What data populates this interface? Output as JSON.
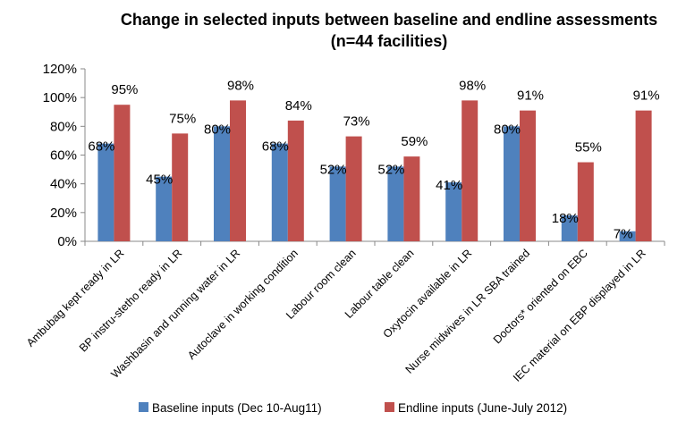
{
  "chart_data": {
    "type": "bar",
    "title": "Change in selected inputs between baseline and endline assessments",
    "subtitle": "(n=44 facilities)",
    "xlabel": "",
    "ylabel": "",
    "ylim": [
      0,
      120
    ],
    "yticks": [
      "0%",
      "20%",
      "40%",
      "60%",
      "80%",
      "100%",
      "120%"
    ],
    "grid": false,
    "legend": "bottom",
    "categories": [
      "Ambubag kept ready in LR",
      "BP instru-stetho ready in LR",
      "Washbasin and running water in LR",
      "Autoclave in working condition",
      "Labour room clean",
      "Labour table clean",
      "Oxytocin available in LR",
      "Nurse midwives in LR SBA trained",
      "Doctors*  oriented on EBC",
      "IEC material on EBP displayed in LR"
    ],
    "series": [
      {
        "name": "Baseline inputs (Dec 10-Aug11)",
        "color": "#4F81BD",
        "values": [
          68,
          45,
          80,
          68,
          52,
          52,
          41,
          80,
          18,
          7
        ],
        "labels": [
          "68%",
          "45%",
          "80%",
          "68%",
          "52%",
          "52%",
          "41%",
          "80%",
          "18%",
          "7%"
        ]
      },
      {
        "name": "Endline inputs (June-July 2012)",
        "color": "#C0504D",
        "values": [
          95,
          75,
          98,
          84,
          73,
          59,
          98,
          91,
          55,
          91
        ],
        "labels": [
          "95%",
          "75%",
          "98%",
          "84%",
          "73%",
          "59%",
          "98%",
          "91%",
          "55%",
          "91%"
        ]
      }
    ]
  }
}
